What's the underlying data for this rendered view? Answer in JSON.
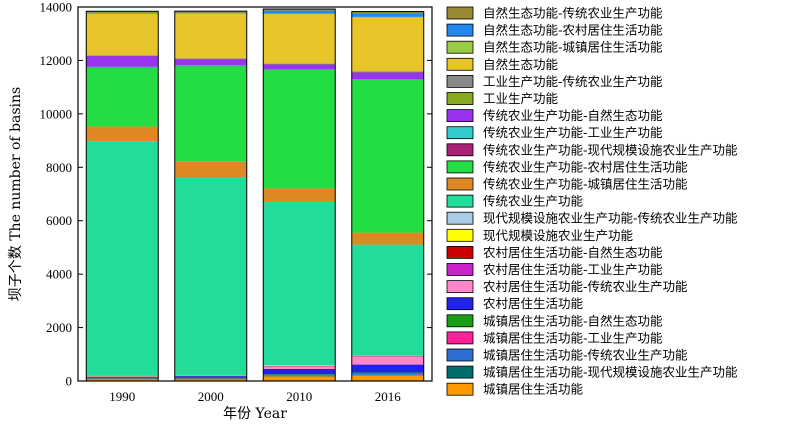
{
  "chart_data": {
    "type": "bar",
    "stacked": true,
    "xlabel": "年份 Year",
    "ylabel": "坝子个数 The number of basins",
    "ylim": [
      0,
      14000
    ],
    "yticks": [
      0,
      2000,
      4000,
      6000,
      8000,
      10000,
      12000,
      14000
    ],
    "categories": [
      "1990",
      "2000",
      "2010",
      "2016"
    ],
    "series": [
      {
        "name": "城镇居住生活功能",
        "color": "#ff9900",
        "values": [
          80,
          80,
          180,
          220
        ]
      },
      {
        "name": "城镇居住生活功能-现代规模设施农业生产功能",
        "color": "#006d6d",
        "values": [
          10,
          10,
          15,
          15
        ]
      },
      {
        "name": "城镇居住生活功能-传统农业生产功能",
        "color": "#2e6fd6",
        "values": [
          20,
          25,
          35,
          55
        ]
      },
      {
        "name": "城镇居住生活功能-工业生产功能",
        "color": "#ff2299",
        "values": [
          5,
          5,
          10,
          15
        ]
      },
      {
        "name": "城镇居住生活功能-自然生态功能",
        "color": "#1a9e1a",
        "values": [
          5,
          5,
          10,
          10
        ]
      },
      {
        "name": "农村居住生活功能",
        "color": "#2222ee",
        "values": [
          40,
          60,
          200,
          300
        ]
      },
      {
        "name": "农村居住生活功能-传统农业生产功能",
        "color": "#ff88cc",
        "values": [
          10,
          20,
          100,
          280
        ]
      },
      {
        "name": "农村居住生活功能-工业生产功能",
        "color": "#cc22cc",
        "values": [
          5,
          5,
          20,
          30
        ]
      },
      {
        "name": "农村居住生活功能-自然生态功能",
        "color": "#cc0000",
        "values": [
          5,
          5,
          10,
          10
        ]
      },
      {
        "name": "现代规模设施农业生产功能",
        "color": "#ffff00",
        "values": [
          5,
          5,
          5,
          5
        ]
      },
      {
        "name": "现代规模设施农业生产功能-传统农业生产功能",
        "color": "#a8cce8",
        "values": [
          5,
          5,
          5,
          5
        ]
      },
      {
        "name": "传统农业生产功能",
        "color": "#22dd99",
        "values": [
          8790,
          7410,
          6110,
          4160
        ]
      },
      {
        "name": "传统农业生产功能-城镇居住生活功能",
        "color": "#dd8822",
        "values": [
          550,
          570,
          510,
          450
        ]
      },
      {
        "name": "传统农业生产功能-农村居住生活功能",
        "color": "#22dd44",
        "values": [
          2220,
          3600,
          4450,
          5740
        ]
      },
      {
        "name": "传统农业生产功能-现代规模设施农业生产功能",
        "color": "#aa2277",
        "values": [
          5,
          5,
          5,
          5
        ]
      },
      {
        "name": "传统农业生产功能-工业生产功能",
        "color": "#33cccc",
        "values": [
          5,
          5,
          5,
          5
        ]
      },
      {
        "name": "传统农业生产功能-自然生态功能",
        "color": "#9933ee",
        "values": [
          420,
          250,
          200,
          270
        ]
      },
      {
        "name": "工业生产功能",
        "color": "#88aa22",
        "values": [
          5,
          5,
          5,
          5
        ]
      },
      {
        "name": "工业生产功能-传统农业生产功能",
        "color": "#888888",
        "values": [
          5,
          5,
          5,
          5
        ]
      },
      {
        "name": "自然生态功能",
        "color": "#e6c42a",
        "values": [
          1580,
          1700,
          1870,
          2040
        ]
      },
      {
        "name": "自然生态功能-城镇居住生活功能",
        "color": "#99cc44",
        "values": [
          5,
          5,
          5,
          5
        ]
      },
      {
        "name": "自然生态功能-农村居住生活功能",
        "color": "#2288ee",
        "values": [
          5,
          5,
          110,
          140
        ]
      },
      {
        "name": "自然生态功能-传统农业生产功能",
        "color": "#998833",
        "values": [
          60,
          60,
          60,
          60
        ]
      }
    ]
  }
}
